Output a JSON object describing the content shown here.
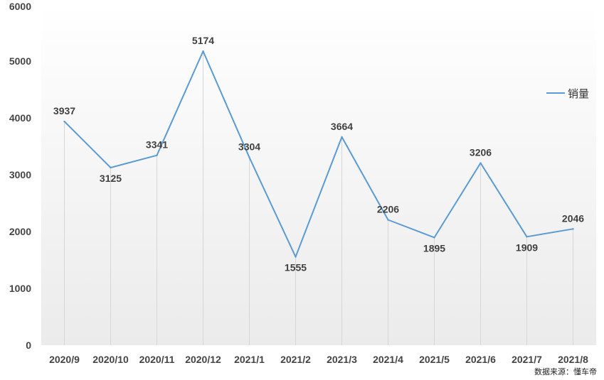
{
  "chart_data": {
    "type": "line",
    "categories": [
      "2020/9",
      "2020/10",
      "2020/11",
      "2020/12",
      "2021/1",
      "2021/2",
      "2021/3",
      "2021/4",
      "2021/5",
      "2021/6",
      "2021/7",
      "2021/8"
    ],
    "series": [
      {
        "name": "销量",
        "values": [
          3937,
          3125,
          3341,
          5174,
          3304,
          1555,
          3664,
          2206,
          1895,
          3206,
          1909,
          2046
        ]
      }
    ],
    "data_labels": [
      "3937",
      "3125",
      "3341",
      "5174",
      "3304",
      "1555",
      "3664",
      "2206",
      "1895",
      "3206",
      "1909",
      "2046"
    ],
    "yticks": [
      "0",
      "1000",
      "2000",
      "3000",
      "4000",
      "5000",
      "6000"
    ],
    "ylim": [
      0,
      6000
    ],
    "legend_position": "right",
    "grid": "vertical drop lines",
    "line_color": "#5b9bd5"
  },
  "source_note": "数据来源：懂车帝"
}
